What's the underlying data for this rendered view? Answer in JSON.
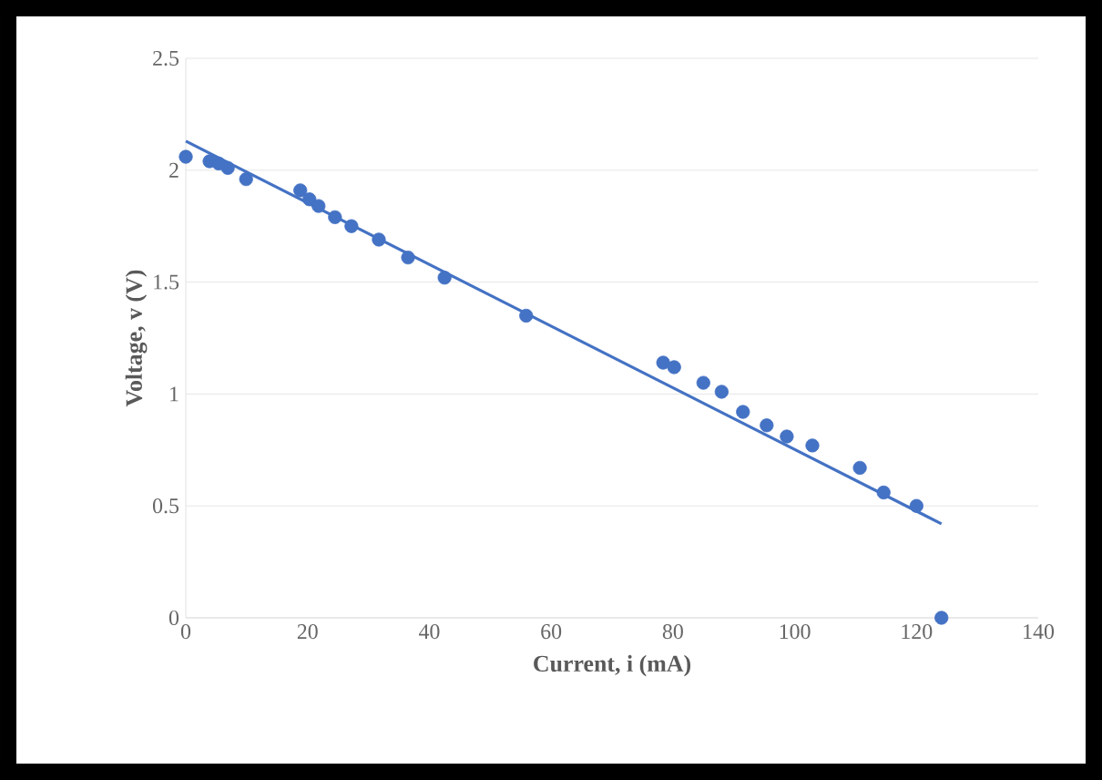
{
  "chart_data": {
    "type": "scatter",
    "xlabel": "Current, i (mA)",
    "ylabel": "Voltage, v (V)",
    "xlim": [
      0,
      140
    ],
    "xticks": [
      0,
      20,
      40,
      60,
      80,
      100,
      120,
      140
    ],
    "ylim": [
      0,
      2.5
    ],
    "yticks": [
      0,
      0.5,
      1,
      1.5,
      2,
      2.5
    ],
    "grid": "y",
    "series": [
      {
        "marker": "circle",
        "color": "#4472c4",
        "x": [
          0,
          3.9,
          5.4,
          6.9,
          9.9,
          18.8,
          20.3,
          21.8,
          24.5,
          27.2,
          31.7,
          36.5,
          42.5,
          55.9,
          78.4,
          80.2,
          85,
          88,
          91.5,
          95.4,
          98.7,
          102.9,
          110.7,
          114.6,
          120,
          124.1
        ],
        "values": [
          2.06,
          2.04,
          2.03,
          2.01,
          1.96,
          1.91,
          1.87,
          1.84,
          1.79,
          1.75,
          1.69,
          1.61,
          1.52,
          1.35,
          1.14,
          1.12,
          1.05,
          1.01,
          0.92,
          0.86,
          0.81,
          0.77,
          0.67,
          0.56,
          0.5,
          0
        ]
      },
      {
        "type": "line",
        "marker": "none",
        "color": "#4472c4",
        "x": [
          0,
          124.1
        ],
        "values": [
          2.13,
          0.42
        ]
      }
    ]
  }
}
